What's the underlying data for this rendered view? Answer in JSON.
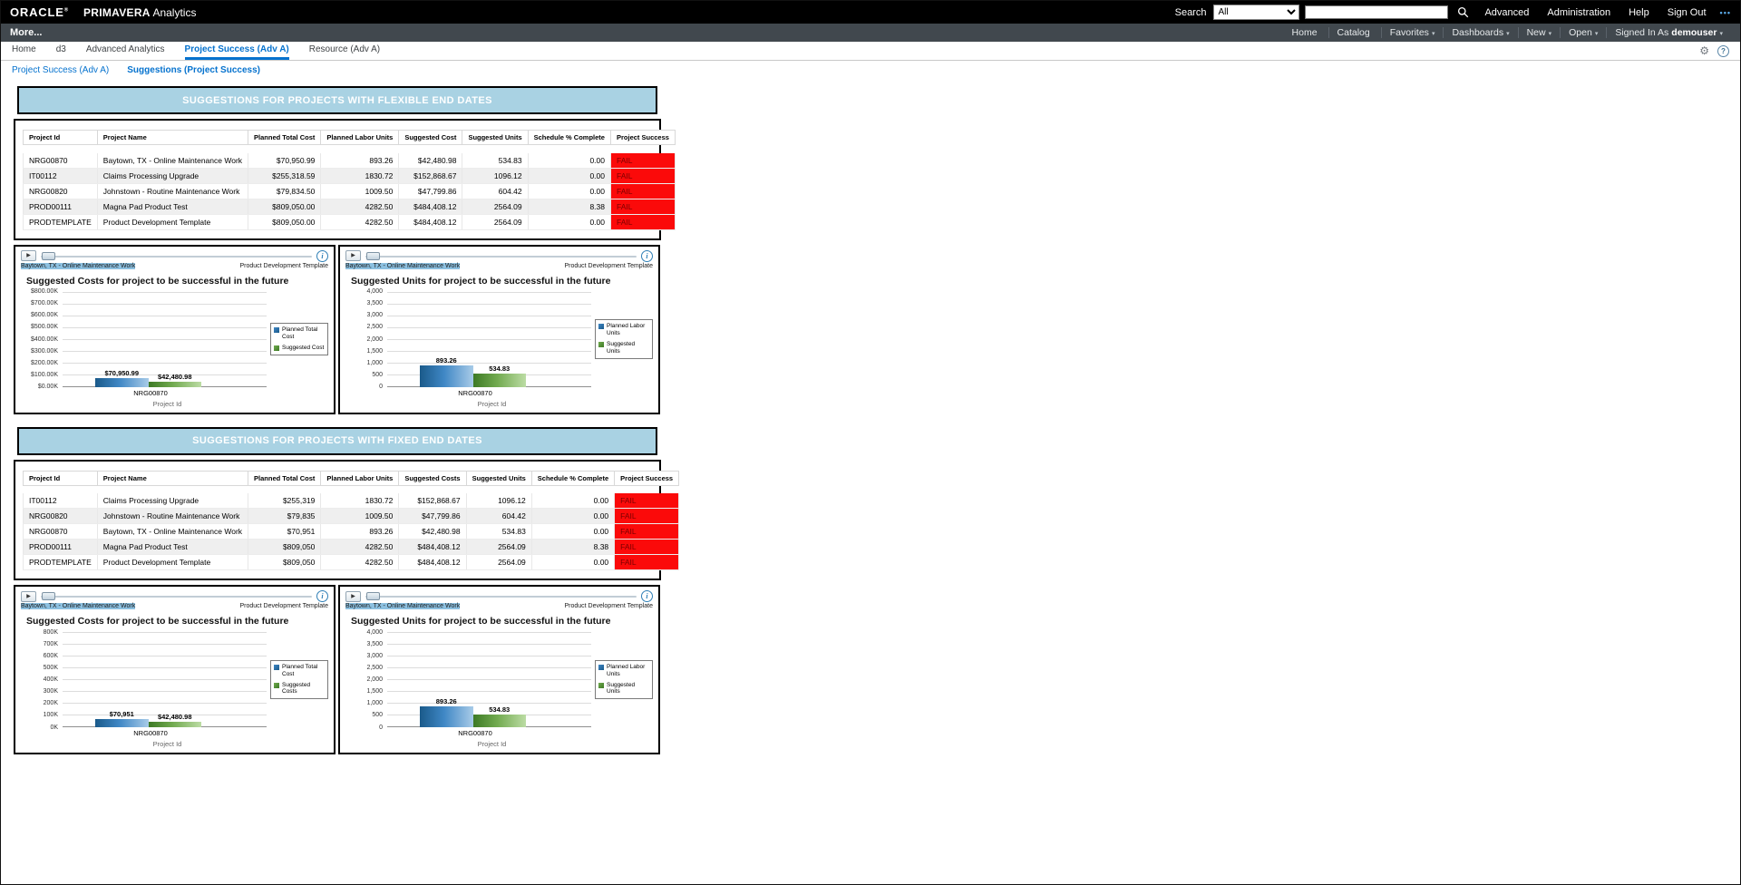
{
  "colors": {
    "banner_bg": "#a9d2e3",
    "fail_bg": "#fb0a0a",
    "fail_text": "#7c0000",
    "link": "#0572ce"
  },
  "icons": {
    "play": "▶",
    "info": "i",
    "gear": "⚙",
    "help": "?",
    "overflow": "•••"
  },
  "global_header": {
    "logo": "ORACLE",
    "logo_mark": "®",
    "product": "PRIMAVERA",
    "product_suffix": "Analytics",
    "search_label": "Search",
    "search_scope": "All",
    "search_value": "",
    "links": [
      "Advanced",
      "Administration",
      "Help",
      "Sign Out"
    ]
  },
  "page_bar": {
    "title": "More...",
    "nav": [
      {
        "label": "Home",
        "caret": ""
      },
      {
        "label": "Catalog",
        "caret": ""
      },
      {
        "label": "Favorites",
        "caret": "▾"
      },
      {
        "label": "Dashboards",
        "caret": "▾"
      },
      {
        "label": "New",
        "caret": "▾"
      },
      {
        "label": "Open",
        "caret": "▾"
      }
    ],
    "signed_in_label": "Signed In As",
    "user": "demouser",
    "user_caret": "▾"
  },
  "dashboard_tabs": [
    {
      "label": "Home"
    },
    {
      "label": "d3"
    },
    {
      "label": "Advanced Analytics"
    },
    {
      "label": "Project Success (Adv A)"
    },
    {
      "label": "Resource (Adv A)"
    }
  ],
  "page_links": {
    "first": "Project Success (Adv A)",
    "second": "Suggestions (Project Success)"
  },
  "sections": [
    {
      "banner": "SUGGESTIONS FOR PROJECTS WITH FLEXIBLE END DATES",
      "table": {
        "columns": [
          "Project Id",
          "Project Name",
          "Planned Total Cost",
          "Planned Labor Units",
          "Suggested Cost",
          "Suggested Units",
          "Schedule % Complete",
          "Project Success"
        ],
        "rows": [
          [
            "NRG00870",
            "Baytown, TX - Online Maintenance Work",
            "$70,950.99",
            "893.26",
            "$42,480.98",
            "534.83",
            "0.00",
            "FAIL"
          ],
          [
            "IT00112",
            "Claims Processing Upgrade",
            "$255,318.59",
            "1830.72",
            "$152,868.67",
            "1096.12",
            "0.00",
            "FAIL"
          ],
          [
            "NRG00820",
            "Johnstown - Routine Maintenance Work",
            "$79,834.50",
            "1009.50",
            "$47,799.86",
            "604.42",
            "0.00",
            "FAIL"
          ],
          [
            "PROD00111",
            "Magna Pad Product Test",
            "$809,050.00",
            "4282.50",
            "$484,408.12",
            "2564.09",
            "8.38",
            "FAIL"
          ],
          [
            "PRODTEMPLATE",
            "Product Development Template",
            "$809,050.00",
            "4282.50",
            "$484,408.12",
            "2564.09",
            "0.00",
            "FAIL"
          ]
        ]
      },
      "charts": [
        {
          "type": "bar",
          "title": "Suggested Costs for project to be successful in the future",
          "slider": {
            "left_label": "Baytown, TX - Online Maintenance Work",
            "right_label": "Product Development Template"
          },
          "y_ticks": [
            "$800.00K",
            "$700.00K",
            "$600.00K",
            "$500.00K",
            "$400.00K",
            "$300.00K",
            "$200.00K",
            "$100.00K",
            "$0.00K"
          ],
          "ymax": 800000,
          "category": "NRG00870",
          "xlabel": "Project Id",
          "series": [
            {
              "name": "Planned Total Cost",
              "value": 70950.99,
              "label": "$70,950.99"
            },
            {
              "name": "Suggested Cost",
              "value": 42480.98,
              "label": "$42,480.98"
            }
          ]
        },
        {
          "type": "bar",
          "title": "Suggested Units for project to be successful in the future",
          "slider": {
            "left_label": "Baytown, TX - Online Maintenance Work",
            "right_label": "Product Development Template"
          },
          "y_ticks": [
            "4,000",
            "3,500",
            "3,000",
            "2,500",
            "2,000",
            "1,500",
            "1,000",
            "500",
            "0"
          ],
          "ymax": 4000,
          "category": "NRG00870",
          "xlabel": "Project Id",
          "series": [
            {
              "name": "Planned Labor Units",
              "value": 893.26,
              "label": "893.26"
            },
            {
              "name": "Suggested Units",
              "value": 534.83,
              "label": "534.83"
            }
          ]
        }
      ]
    },
    {
      "banner": "SUGGESTIONS FOR PROJECTS WITH FIXED END DATES",
      "table": {
        "columns": [
          "Project Id",
          "Project Name",
          "Planned Total Cost",
          "Planned Labor Units",
          "Suggested Costs",
          "Suggested Units",
          "Schedule % Complete",
          "Project Success"
        ],
        "rows": [
          [
            "IT00112",
            "Claims Processing Upgrade",
            "$255,319",
            "1830.72",
            "$152,868.67",
            "1096.12",
            "0.00",
            "FAIL"
          ],
          [
            "NRG00820",
            "Johnstown - Routine Maintenance Work",
            "$79,835",
            "1009.50",
            "$47,799.86",
            "604.42",
            "0.00",
            "FAIL"
          ],
          [
            "NRG00870",
            "Baytown, TX - Online Maintenance Work",
            "$70,951",
            "893.26",
            "$42,480.98",
            "534.83",
            "0.00",
            "FAIL"
          ],
          [
            "PROD00111",
            "Magna Pad Product Test",
            "$809,050",
            "4282.50",
            "$484,408.12",
            "2564.09",
            "8.38",
            "FAIL"
          ],
          [
            "PRODTEMPLATE",
            "Product Development Template",
            "$809,050",
            "4282.50",
            "$484,408.12",
            "2564.09",
            "0.00",
            "FAIL"
          ]
        ]
      },
      "charts": [
        {
          "type": "bar",
          "title": "Suggested Costs for project to be successful in the future",
          "slider": {
            "left_label": "Baytown, TX - Online Maintenance Work",
            "right_label": "Product Development Template"
          },
          "y_ticks": [
            "800K",
            "700K",
            "600K",
            "500K",
            "400K",
            "300K",
            "200K",
            "100K",
            "0K"
          ],
          "ymax": 800000,
          "category": "NRG00870",
          "xlabel": "Project Id",
          "series": [
            {
              "name": "Planned Total Cost",
              "value": 70951,
              "label": "$70,951"
            },
            {
              "name": "Suggested Costs",
              "value": 42480.98,
              "label": "$42,480.98"
            }
          ]
        },
        {
          "type": "bar",
          "title": "Suggested Units for project to be successful in the future",
          "slider": {
            "left_label": "Baytown, TX - Online Maintenance Work",
            "right_label": "Product Development Template"
          },
          "y_ticks": [
            "4,000",
            "3,500",
            "3,000",
            "2,500",
            "2,000",
            "1,500",
            "1,000",
            "500",
            "0"
          ],
          "ymax": 4000,
          "category": "NRG00870",
          "xlabel": "Project Id",
          "series": [
            {
              "name": "Planned Labor Units",
              "value": 893.26,
              "label": "893.26"
            },
            {
              "name": "Suggested Units",
              "value": 534.83,
              "label": "534.83"
            }
          ]
        }
      ]
    }
  ]
}
